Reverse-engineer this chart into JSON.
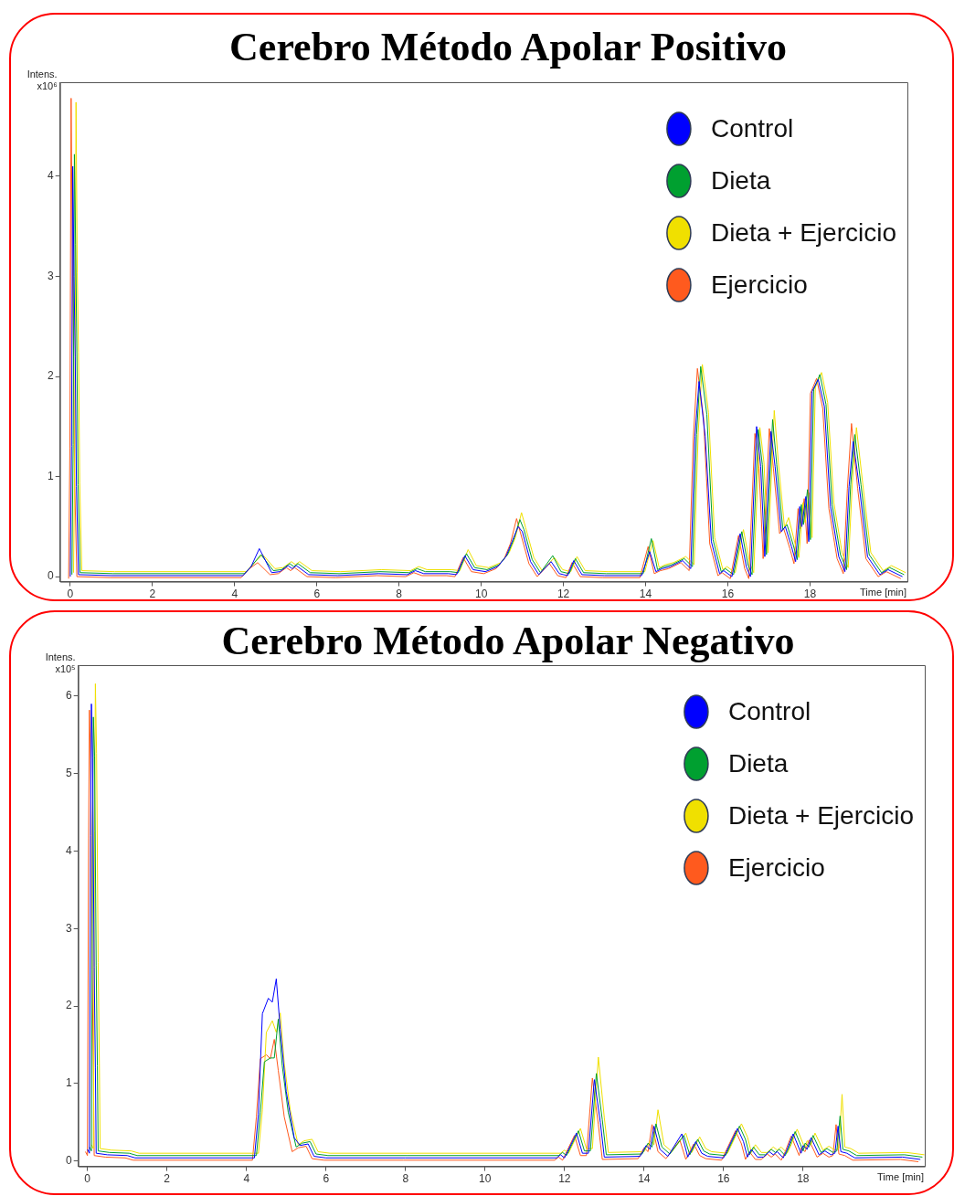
{
  "chart_data": [
    {
      "type": "line",
      "title": "Cerebro Método Apolar Positivo",
      "ylabel": "Intens. x10⁶",
      "xlabel": "Time [min]",
      "legend": "top right",
      "grid": false,
      "xlim": [
        -0.25,
        20.37
      ],
      "xticks": [
        0,
        2,
        4,
        6,
        8,
        10,
        12,
        14,
        16,
        18
      ],
      "ylim": [
        -0.05,
        4.94
      ],
      "yticks": [
        0,
        1,
        2,
        3,
        4
      ],
      "x": [
        0,
        0.03,
        0.06,
        0.09,
        0.12,
        0.15,
        0.2,
        1,
        4.2,
        4.4,
        4.6,
        4.9,
        5.1,
        5.3,
        5.4,
        5.5,
        5.8,
        6.5,
        7.5,
        8.2,
        8.4,
        8.6,
        9.2,
        9.4,
        9.6,
        9.8,
        10.1,
        10.4,
        10.6,
        10.75,
        10.9,
        11,
        11.2,
        11.4,
        11.7,
        11.9,
        12.1,
        12.25,
        12.45,
        13,
        13.9,
        14.1,
        14.25,
        14.4,
        14.6,
        14.9,
        15.1,
        15.2,
        15.3,
        15.45,
        15.6,
        15.8,
        15.9,
        16.1,
        16.3,
        16.45,
        16.55,
        16.7,
        16.8,
        16.9,
        17.05,
        17.15,
        17.3,
        17.4,
        17.55,
        17.65,
        17.75,
        17.8,
        17.9,
        17.97,
        18.05,
        18.2,
        18.35,
        18.5,
        18.7,
        18.85,
        18.95,
        19.05,
        19.2,
        19.4,
        19.7,
        19.9,
        20.25
      ],
      "series": [
        {
          "name": "Control",
          "color": "#0000ff",
          "values": [
            0,
            1.3,
            4.1,
            3.0,
            2.2,
            0.9,
            0.02,
            0.01,
            0.01,
            0.1,
            0.28,
            0.04,
            0.05,
            0.11,
            0.08,
            0.11,
            0.02,
            0.01,
            0.03,
            0.02,
            0.06,
            0.03,
            0.03,
            0.02,
            0.21,
            0.07,
            0.05,
            0.1,
            0.2,
            0.35,
            0.5,
            0.45,
            0.15,
            0.02,
            0.15,
            0.03,
            0.01,
            0.16,
            0.02,
            0.01,
            0.01,
            0.25,
            0.05,
            0.08,
            0.1,
            0.16,
            0.08,
            1.4,
            1.95,
            1.4,
            0.35,
            0.03,
            0.06,
            0,
            0.43,
            0.1,
            0,
            1.5,
            1.1,
            0.2,
            1.45,
            1.1,
            0.45,
            0.5,
            0.3,
            0.15,
            0.7,
            0.5,
            0.8,
            0.35,
            1.85,
            1.97,
            1.7,
            0.7,
            0.2,
            0.05,
            0.9,
            1.35,
            0.9,
            0.2,
            0.02,
            0.07,
            0
          ]
        },
        {
          "name": "Dieta",
          "color": "#00a030",
          "x": [
            0.04,
            0.07,
            0.1,
            0.13,
            0.16,
            0.19,
            0.24,
            1.04,
            4.24,
            4.44,
            4.64,
            4.94,
            5.14,
            5.34,
            5.44,
            5.54,
            5.84,
            6.54,
            7.54,
            8.24,
            8.44,
            8.64,
            9.24,
            9.44,
            9.64,
            9.84,
            10.14,
            10.44,
            10.64,
            10.79,
            10.94,
            11.04,
            11.24,
            11.44,
            11.74,
            11.94,
            12.14,
            12.29,
            12.49,
            13.04,
            13.94,
            14.14,
            14.29,
            14.44,
            14.64,
            14.94,
            15.14,
            15.24,
            15.34,
            15.49,
            15.64,
            15.84,
            15.94,
            16.14,
            16.34,
            16.49,
            16.59,
            16.74,
            16.84,
            16.94,
            17.09,
            17.19,
            17.34,
            17.44,
            17.59,
            17.69,
            17.79,
            17.84,
            17.94,
            18.01,
            18.09,
            18.24,
            18.39,
            18.54,
            18.74,
            18.89,
            18.99,
            19.09,
            19.24,
            19.44,
            19.74,
            19.94,
            20.29
          ],
          "values": [
            0.02,
            1.32,
            4.22,
            3.32,
            2.22,
            0.92,
            0.04,
            0.03,
            0.03,
            0.12,
            0.22,
            0.06,
            0.07,
            0.13,
            0.1,
            0.13,
            0.04,
            0.03,
            0.05,
            0.04,
            0.08,
            0.05,
            0.05,
            0.04,
            0.23,
            0.09,
            0.07,
            0.12,
            0.22,
            0.37,
            0.57,
            0.47,
            0.17,
            0.04,
            0.21,
            0.05,
            0.03,
            0.18,
            0.04,
            0.03,
            0.03,
            0.38,
            0.07,
            0.1,
            0.12,
            0.18,
            0.1,
            1.42,
            2.1,
            1.62,
            0.37,
            0.05,
            0.08,
            0.02,
            0.45,
            0.12,
            0.02,
            1.47,
            1.12,
            0.22,
            1.57,
            1.12,
            0.47,
            0.52,
            0.32,
            0.17,
            0.72,
            0.52,
            0.87,
            0.37,
            1.87,
            2.02,
            1.72,
            0.72,
            0.22,
            0.07,
            0.92,
            1.42,
            0.92,
            0.22,
            0.04,
            0.09,
            0.02
          ]
        },
        {
          "name": "Dieta + Ejercicio",
          "color": "#f0e000",
          "x": [
            0.08,
            0.11,
            0.14,
            0.17,
            0.2,
            0.23,
            0.28,
            1.08,
            4.28,
            4.48,
            4.68,
            4.98,
            5.18,
            5.38,
            5.48,
            5.58,
            5.88,
            6.58,
            7.58,
            8.28,
            8.48,
            8.68,
            9.28,
            9.48,
            9.68,
            9.88,
            10.18,
            10.48,
            10.68,
            10.83,
            10.98,
            11.08,
            11.28,
            11.48,
            11.78,
            11.98,
            12.18,
            12.33,
            12.53,
            13.08,
            13.98,
            14.18,
            14.33,
            14.48,
            14.68,
            14.98,
            15.18,
            15.28,
            15.38,
            15.53,
            15.68,
            15.88,
            15.98,
            16.18,
            16.38,
            16.53,
            16.63,
            16.78,
            16.88,
            16.98,
            17.13,
            17.23,
            17.38,
            17.48,
            17.63,
            17.73,
            17.83,
            17.88,
            17.98,
            18.05,
            18.13,
            18.28,
            18.43,
            18.58,
            18.78,
            18.93,
            19.03,
            19.13,
            19.28,
            19.48,
            19.78,
            19.98,
            20.33
          ],
          "values": [
            0.04,
            1.34,
            4.74,
            3.04,
            2.24,
            0.94,
            0.06,
            0.05,
            0.05,
            0.14,
            0.22,
            0.08,
            0.09,
            0.15,
            0.12,
            0.15,
            0.06,
            0.05,
            0.07,
            0.06,
            0.1,
            0.07,
            0.07,
            0.06,
            0.27,
            0.11,
            0.09,
            0.14,
            0.24,
            0.39,
            0.64,
            0.49,
            0.19,
            0.06,
            0.19,
            0.07,
            0.05,
            0.2,
            0.06,
            0.05,
            0.05,
            0.36,
            0.09,
            0.12,
            0.14,
            0.2,
            0.12,
            1.44,
            2.12,
            1.64,
            0.39,
            0.07,
            0.1,
            0.04,
            0.47,
            0.14,
            0.04,
            1.49,
            1.14,
            0.24,
            1.66,
            1.14,
            0.49,
            0.59,
            0.34,
            0.19,
            0.74,
            0.54,
            0.84,
            0.39,
            1.89,
            2.04,
            1.74,
            0.74,
            0.24,
            0.09,
            0.94,
            1.49,
            0.94,
            0.24,
            0.06,
            0.11,
            0.04
          ]
        },
        {
          "name": "Ejercicio",
          "color": "#ff5a1e",
          "x": [
            -0.04,
            -0.01,
            0.02,
            0.05,
            0.08,
            0.11,
            0.16,
            0.96,
            4.16,
            4.36,
            4.56,
            4.86,
            5.06,
            5.26,
            5.36,
            5.46,
            5.76,
            6.46,
            7.46,
            8.16,
            8.36,
            8.56,
            9.16,
            9.36,
            9.56,
            9.76,
            10.06,
            10.36,
            10.56,
            10.71,
            10.86,
            10.96,
            11.16,
            11.36,
            11.66,
            11.86,
            12.06,
            12.21,
            12.41,
            12.96,
            13.86,
            14.06,
            14.21,
            14.36,
            14.56,
            14.86,
            15.06,
            15.16,
            15.26,
            15.41,
            15.56,
            15.76,
            15.86,
            16.06,
            16.26,
            16.41,
            16.51,
            16.66,
            16.76,
            16.86,
            17.01,
            17.11,
            17.26,
            17.36,
            17.51,
            17.61,
            17.71,
            17.76,
            17.86,
            17.93,
            18.01,
            18.16,
            18.31,
            18.46,
            18.66,
            18.81,
            18.91,
            19.01,
            19.16,
            19.36,
            19.66,
            19.86,
            20.21
          ],
          "values": [
            -0.02,
            1.28,
            4.78,
            3.28,
            2.18,
            0.88,
            0,
            -0.01,
            -0.01,
            0.08,
            0.14,
            0.02,
            0.03,
            0.09,
            0.06,
            0.09,
            0,
            -0.01,
            0.01,
            0,
            0.04,
            0.01,
            0.01,
            0,
            0.19,
            0.05,
            0.03,
            0.08,
            0.18,
            0.33,
            0.58,
            0.43,
            0.13,
            0,
            0.13,
            0.01,
            -0.01,
            0.14,
            0,
            -0.01,
            -0.01,
            0.3,
            0.03,
            0.06,
            0.08,
            0.14,
            0.06,
            1.38,
            2.08,
            1.58,
            0.33,
            0.01,
            0.04,
            -0.02,
            0.41,
            0.08,
            -0.02,
            1.43,
            1.08,
            0.18,
            1.48,
            1.08,
            0.43,
            0.48,
            0.28,
            0.13,
            0.68,
            0.48,
            0.78,
            0.33,
            1.83,
            1.98,
            1.68,
            0.68,
            0.18,
            0.03,
            0.88,
            1.53,
            0.88,
            0.18,
            0,
            0.05,
            -0.02
          ]
        }
      ]
    },
    {
      "type": "line",
      "title": "Cerebro Método Apolar Negativo",
      "ylabel": "Intens. x10⁵",
      "xlabel": "Time [min]",
      "legend": "top right",
      "grid": false,
      "xlim": [
        -0.23,
        21.06
      ],
      "xticks": [
        0,
        2,
        4,
        6,
        8,
        10,
        12,
        14,
        16,
        18
      ],
      "ylim": [
        -0.07,
        6.4
      ],
      "yticks": [
        0,
        1,
        2,
        3,
        4,
        5,
        6
      ],
      "x": [
        0,
        0.05,
        0.08,
        0.1,
        0.13,
        0.17,
        0.2,
        0.22,
        0.5,
        1,
        1.2,
        4.2,
        4.3,
        4.4,
        4.55,
        4.65,
        4.75,
        4.85,
        5,
        5.2,
        5.35,
        5.55,
        5.7,
        6,
        8,
        11.8,
        11.9,
        12,
        12.3,
        12.45,
        12.6,
        12.75,
        12.9,
        13,
        13.9,
        14.05,
        14.15,
        14.25,
        14.4,
        14.6,
        14.95,
        15.1,
        15.3,
        15.45,
        15.6,
        16,
        16.35,
        16.5,
        16.6,
        16.7,
        16.85,
        17,
        17.15,
        17.25,
        17.35,
        17.5,
        17.6,
        17.75,
        17.95,
        18,
        18.1,
        18.2,
        18.4,
        18.55,
        18.7,
        18.8,
        18.88,
        18.95,
        19.1,
        19.3,
        20.5,
        20.95
      ],
      "series": [
        {
          "name": "Control",
          "color": "#0000ff",
          "values": [
            0.15,
            0.1,
            4.2,
            5.9,
            5.2,
            2.5,
            1.2,
            0.1,
            0.08,
            0.07,
            0.04,
            0.04,
            0.6,
            1.9,
            2.1,
            2.05,
            2.35,
            1.7,
            0.9,
            0.3,
            0.2,
            0.22,
            0.06,
            0.04,
            0.04,
            0.04,
            0.08,
            0.04,
            0.36,
            0.1,
            0.1,
            1.05,
            0.5,
            0.05,
            0.06,
            0.2,
            0.15,
            0.45,
            0.15,
            0.06,
            0.35,
            0.05,
            0.25,
            0.1,
            0.06,
            0.04,
            0.42,
            0.25,
            0.05,
            0.15,
            0.05,
            0.05,
            0.12,
            0.08,
            0.12,
            0.04,
            0.15,
            0.35,
            0.1,
            0.2,
            0.15,
            0.3,
            0.08,
            0.13,
            0.08,
            0.1,
            0.45,
            0.12,
            0.1,
            0.04,
            0.05,
            0.02
          ]
        },
        {
          "name": "Dieta",
          "color": "#00a030",
          "x": [
            0.05,
            0.1,
            0.13,
            0.15,
            0.18,
            0.22,
            0.25,
            0.27,
            0.55,
            1.05,
            1.25,
            4.25,
            4.35,
            4.45,
            4.6,
            4.7,
            4.8,
            4.9,
            5.05,
            5.25,
            5.4,
            5.6,
            5.75,
            6.05,
            8.05,
            11.85,
            11.95,
            12.05,
            12.35,
            12.5,
            12.65,
            12.8,
            12.95,
            13.05,
            13.95,
            14.1,
            14.2,
            14.3,
            14.45,
            14.65,
            15,
            15.15,
            15.35,
            15.5,
            15.65,
            16.05,
            16.4,
            16.55,
            16.65,
            16.75,
            16.9,
            17.05,
            17.2,
            17.3,
            17.4,
            17.55,
            17.65,
            17.8,
            18,
            18.05,
            18.15,
            18.25,
            18.45,
            18.6,
            18.75,
            18.85,
            18.93,
            19,
            19.15,
            19.35,
            20.55,
            21
          ],
          "values": [
            0.18,
            0.13,
            4.23,
            5.73,
            5.23,
            2.53,
            1.23,
            0.13,
            0.11,
            0.1,
            0.07,
            0.07,
            0.63,
            1.28,
            1.33,
            1.33,
            1.83,
            1.23,
            0.63,
            0.18,
            0.23,
            0.25,
            0.09,
            0.07,
            0.07,
            0.07,
            0.11,
            0.07,
            0.39,
            0.13,
            0.13,
            1.13,
            0.53,
            0.08,
            0.09,
            0.23,
            0.18,
            0.48,
            0.18,
            0.09,
            0.33,
            0.08,
            0.28,
            0.13,
            0.09,
            0.07,
            0.45,
            0.28,
            0.08,
            0.18,
            0.08,
            0.08,
            0.15,
            0.11,
            0.15,
            0.07,
            0.18,
            0.38,
            0.13,
            0.23,
            0.18,
            0.33,
            0.11,
            0.16,
            0.11,
            0.13,
            0.58,
            0.15,
            0.13,
            0.07,
            0.08,
            0.05
          ]
        },
        {
          "name": "Dieta + Ejercicio",
          "color": "#f0e000",
          "x": [
            0.1,
            0.15,
            0.18,
            0.2,
            0.23,
            0.27,
            0.3,
            0.32,
            0.6,
            1.1,
            1.3,
            4.3,
            4.4,
            4.5,
            4.65,
            4.75,
            4.85,
            4.95,
            5.1,
            5.3,
            5.45,
            5.65,
            5.8,
            6.1,
            8.1,
            11.9,
            12,
            12.1,
            12.4,
            12.55,
            12.7,
            12.85,
            13,
            13.1,
            14,
            14.15,
            14.25,
            14.35,
            14.5,
            14.7,
            15.05,
            15.2,
            15.4,
            15.55,
            15.7,
            16.1,
            16.45,
            16.6,
            16.7,
            16.8,
            16.95,
            17.1,
            17.25,
            17.35,
            17.45,
            17.6,
            17.7,
            17.85,
            18.05,
            18.1,
            18.2,
            18.3,
            18.5,
            18.65,
            18.8,
            18.9,
            18.98,
            19.05,
            19.2,
            19.4,
            20.6,
            21.05
          ],
          "values": [
            0.21,
            0.16,
            4.26,
            6.16,
            5.26,
            2.56,
            1.26,
            0.16,
            0.14,
            0.13,
            0.1,
            0.1,
            0.66,
            1.66,
            1.81,
            1.66,
            1.91,
            1.26,
            0.66,
            0.21,
            0.26,
            0.28,
            0.12,
            0.1,
            0.1,
            0.1,
            0.14,
            0.1,
            0.42,
            0.16,
            0.16,
            1.34,
            0.56,
            0.11,
            0.12,
            0.26,
            0.21,
            0.66,
            0.21,
            0.12,
            0.36,
            0.11,
            0.31,
            0.16,
            0.12,
            0.1,
            0.48,
            0.31,
            0.11,
            0.21,
            0.11,
            0.11,
            0.18,
            0.14,
            0.18,
            0.1,
            0.21,
            0.41,
            0.16,
            0.26,
            0.21,
            0.36,
            0.14,
            0.19,
            0.14,
            0.16,
            0.86,
            0.18,
            0.16,
            0.1,
            0.11,
            0.08
          ]
        },
        {
          "name": "Ejercicio",
          "color": "#ff5a1e",
          "x": [
            -0.05,
            0,
            0.03,
            0.05,
            0.08,
            0.12,
            0.15,
            0.17,
            0.45,
            0.95,
            1.15,
            4.15,
            4.25,
            4.35,
            4.5,
            4.6,
            4.7,
            4.8,
            4.95,
            5.15,
            5.3,
            5.5,
            5.65,
            5.95,
            7.95,
            11.75,
            11.85,
            11.95,
            12.25,
            12.4,
            12.55,
            12.7,
            12.85,
            12.95,
            13.85,
            14,
            14.1,
            14.2,
            14.35,
            14.55,
            14.9,
            15.05,
            15.25,
            15.4,
            15.55,
            15.95,
            16.3,
            16.45,
            16.55,
            16.65,
            16.8,
            16.95,
            17.1,
            17.2,
            17.3,
            17.45,
            17.55,
            17.7,
            17.9,
            17.95,
            18.05,
            18.15,
            18.35,
            18.5,
            18.65,
            18.75,
            18.83,
            18.9,
            19.05,
            19.25,
            20.45,
            20.9
          ],
          "values": [
            0.12,
            0.07,
            4.17,
            5.82,
            5.17,
            2.47,
            1.17,
            0.07,
            0.05,
            0.04,
            0.01,
            0.01,
            0.57,
            1.32,
            1.37,
            1.32,
            1.57,
            1.17,
            0.57,
            0.12,
            0.17,
            0.19,
            0.03,
            0.01,
            0.01,
            0.01,
            0.05,
            0.01,
            0.33,
            0.07,
            0.07,
            1.07,
            0.47,
            0.02,
            0.03,
            0.17,
            0.12,
            0.47,
            0.12,
            0.03,
            0.27,
            0.02,
            0.22,
            0.07,
            0.03,
            0.01,
            0.39,
            0.22,
            0.02,
            0.12,
            0.02,
            0.02,
            0.09,
            0.05,
            0.09,
            0.01,
            0.12,
            0.32,
            0.07,
            0.17,
            0.12,
            0.27,
            0.05,
            0.1,
            0.05,
            0.07,
            0.47,
            0.09,
            0.07,
            0.01,
            0.02,
            -0.01
          ]
        }
      ]
    }
  ]
}
